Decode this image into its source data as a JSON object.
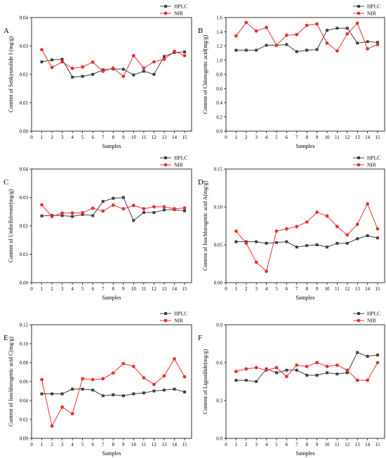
{
  "figure": {
    "legend_labels": [
      "HPLC",
      "NIR"
    ],
    "colors": {
      "HPLC": "#404040",
      "NIR": "#e8312f"
    }
  },
  "chart_data": [
    {
      "panel": "A",
      "type": "line",
      "xlabel": "Samples",
      "ylabel": "Content of Senkyunolide I (mg/g)",
      "x": [
        1,
        2,
        3,
        4,
        5,
        6,
        7,
        8,
        9,
        10,
        11,
        12,
        13,
        14,
        15
      ],
      "xlim": [
        0,
        15
      ],
      "ylim": [
        0,
        0.04
      ],
      "xticks": [
        "0",
        "1",
        "2",
        "3",
        "4",
        "5",
        "6",
        "7",
        "8",
        "9",
        "10",
        "11",
        "12",
        "13",
        "14",
        "15"
      ],
      "yticks": [
        "0.00",
        "0.01",
        "0.02",
        "0.03",
        "0.04"
      ],
      "ytick_values": [
        0,
        0.01,
        0.02,
        0.03,
        0.04
      ],
      "legend_position": "top-right",
      "series": [
        {
          "name": "HPLC",
          "values": [
            0.0244,
            0.0251,
            0.0253,
            0.019,
            0.0193,
            0.02,
            0.0216,
            0.0219,
            0.0218,
            0.0198,
            0.0211,
            0.02,
            0.0263,
            0.0277,
            0.0279
          ]
        },
        {
          "name": "NIR",
          "values": [
            0.0287,
            0.0224,
            0.0244,
            0.0221,
            0.0226,
            0.0243,
            0.0211,
            0.0222,
            0.0193,
            0.0266,
            0.0222,
            0.0244,
            0.0253,
            0.0281,
            0.0266
          ]
        }
      ]
    },
    {
      "panel": "B",
      "type": "line",
      "xlabel": "Samples",
      "ylabel": "Content of Chlorogenic acid(mg/g)",
      "x": [
        1,
        2,
        3,
        4,
        5,
        6,
        7,
        8,
        9,
        10,
        11,
        12,
        13,
        14,
        15
      ],
      "xlim": [
        0,
        15
      ],
      "ylim": [
        0,
        1.6
      ],
      "xticks": [
        "0",
        "1",
        "2",
        "3",
        "4",
        "5",
        "6",
        "7",
        "8",
        "9",
        "10",
        "11",
        "12",
        "13",
        "14",
        "15"
      ],
      "yticks": [
        "0.0",
        "0.2",
        "0.4",
        "0.6",
        "0.8",
        "1.0",
        "1.2",
        "1.4",
        "1.6"
      ],
      "ytick_values": [
        0,
        0.2,
        0.4,
        0.6,
        0.8,
        1.0,
        1.2,
        1.4,
        1.6
      ],
      "legend_position": "top-right",
      "series": [
        {
          "name": "HPLC",
          "values": [
            1.14,
            1.14,
            1.14,
            1.21,
            1.21,
            1.22,
            1.12,
            1.14,
            1.15,
            1.42,
            1.45,
            1.45,
            1.24,
            1.26,
            1.25
          ]
        },
        {
          "name": "NIR",
          "values": [
            1.34,
            1.53,
            1.41,
            1.46,
            1.21,
            1.35,
            1.36,
            1.49,
            1.51,
            1.24,
            1.13,
            1.37,
            1.52,
            1.16,
            1.22
          ]
        }
      ]
    },
    {
      "panel": "C",
      "type": "line",
      "xlabel": "Samples",
      "ylabel": "Content of Umbelliferone(mg/g)",
      "x": [
        1,
        2,
        3,
        4,
        5,
        6,
        7,
        8,
        9,
        10,
        11,
        12,
        13,
        14,
        15
      ],
      "xlim": [
        0,
        15
      ],
      "ylim": [
        0,
        0.04
      ],
      "xticks": [
        "0",
        "1",
        "2",
        "3",
        "4",
        "5",
        "6",
        "7",
        "8",
        "9",
        "10",
        "11",
        "12",
        "13",
        "14",
        "15"
      ],
      "yticks": [
        "0.00",
        "0.01",
        "0.02",
        "0.03",
        "0.04"
      ],
      "ytick_values": [
        0,
        0.01,
        0.02,
        0.03,
        0.04
      ],
      "legend_position": "top-right",
      "series": [
        {
          "name": "HPLC",
          "values": [
            0.0235,
            0.0237,
            0.0236,
            0.0233,
            0.024,
            0.0236,
            0.0286,
            0.0297,
            0.03,
            0.0219,
            0.0247,
            0.0247,
            0.0256,
            0.0257,
            0.0253
          ]
        },
        {
          "name": "NIR",
          "values": [
            0.0274,
            0.0233,
            0.0245,
            0.0245,
            0.0246,
            0.0262,
            0.0252,
            0.0273,
            0.026,
            0.0272,
            0.026,
            0.0267,
            0.0267,
            0.026,
            0.0263
          ]
        }
      ]
    },
    {
      "panel": "D",
      "type": "line",
      "xlabel": "Samples",
      "ylabel": "Content of Isochlorogenic acid A(mg/g)",
      "x": [
        1,
        2,
        3,
        4,
        5,
        6,
        7,
        8,
        9,
        10,
        11,
        12,
        13,
        14,
        15
      ],
      "xlim": [
        0,
        15
      ],
      "ylim": [
        0,
        0.15
      ],
      "xticks": [
        "0",
        "1",
        "2",
        "3",
        "4",
        "5",
        "6",
        "7",
        "8",
        "9",
        "10",
        "11",
        "12",
        "13",
        "14",
        "15"
      ],
      "yticks": [
        "0.00",
        "0.05",
        "0.10",
        "0.15"
      ],
      "ytick_values": [
        0,
        0.05,
        0.1,
        0.15
      ],
      "legend_position": "top-right",
      "series": [
        {
          "name": "HPLC",
          "values": [
            0.054,
            0.054,
            0.054,
            0.052,
            0.053,
            0.054,
            0.047,
            0.049,
            0.05,
            0.047,
            0.052,
            0.052,
            0.058,
            0.062,
            0.059
          ]
        },
        {
          "name": "NIR",
          "values": [
            0.068,
            0.052,
            0.027,
            0.015,
            0.068,
            0.071,
            0.074,
            0.08,
            0.093,
            0.088,
            0.074,
            0.063,
            0.077,
            0.104,
            0.071
          ]
        }
      ]
    },
    {
      "panel": "E",
      "type": "line",
      "xlabel": "Samples",
      "ylabel": "Content of Isochlorogenic acid C(mg/g)",
      "x": [
        1,
        2,
        3,
        4,
        5,
        6,
        7,
        8,
        9,
        10,
        11,
        12,
        13,
        14,
        15
      ],
      "xlim": [
        0,
        15
      ],
      "ylim": [
        0,
        0.12
      ],
      "xticks": [
        "0",
        "1",
        "2",
        "3",
        "4",
        "5",
        "6",
        "7",
        "8",
        "9",
        "10",
        "11",
        "12",
        "13",
        "14",
        "15"
      ],
      "yticks": [
        "0.00",
        "0.02",
        "0.04",
        "0.06",
        "0.08",
        "0.10",
        "0.12"
      ],
      "ytick_values": [
        0,
        0.02,
        0.04,
        0.06,
        0.08,
        0.1,
        0.12
      ],
      "legend_position": "top-right",
      "series": [
        {
          "name": "HPLC",
          "values": [
            0.047,
            0.047,
            0.047,
            0.052,
            0.052,
            0.051,
            0.045,
            0.046,
            0.045,
            0.047,
            0.048,
            0.05,
            0.051,
            0.052,
            0.049
          ]
        },
        {
          "name": "NIR",
          "values": [
            0.062,
            0.013,
            0.033,
            0.026,
            0.063,
            0.062,
            0.063,
            0.069,
            0.079,
            0.076,
            0.064,
            0.057,
            0.066,
            0.084,
            0.065
          ]
        }
      ]
    },
    {
      "panel": "F",
      "type": "line",
      "xlabel": "Samples",
      "ylabel": "Content of Ligustilide(mg/g)",
      "x": [
        1,
        2,
        3,
        4,
        5,
        6,
        7,
        8,
        9,
        10,
        11,
        12,
        13,
        14,
        15
      ],
      "xlim": [
        0,
        15
      ],
      "ylim": [
        0,
        0.9
      ],
      "xticks": [
        "0",
        "1",
        "2",
        "3",
        "4",
        "5",
        "6",
        "7",
        "8",
        "9",
        "10",
        "11",
        "12",
        "13",
        "14",
        "15"
      ],
      "yticks": [
        "0.0",
        "0.3",
        "0.6",
        "0.9"
      ],
      "ytick_values": [
        0,
        0.3,
        0.6,
        0.9
      ],
      "legend_position": "top-right",
      "series": [
        {
          "name": "HPLC",
          "values": [
            0.46,
            0.46,
            0.45,
            0.55,
            0.52,
            0.54,
            0.54,
            0.5,
            0.5,
            0.52,
            0.51,
            0.52,
            0.68,
            0.65,
            0.66
          ]
        },
        {
          "name": "NIR",
          "values": [
            0.53,
            0.55,
            0.56,
            0.54,
            0.56,
            0.49,
            0.58,
            0.57,
            0.6,
            0.57,
            0.58,
            0.54,
            0.46,
            0.46,
            0.6
          ]
        }
      ]
    }
  ]
}
